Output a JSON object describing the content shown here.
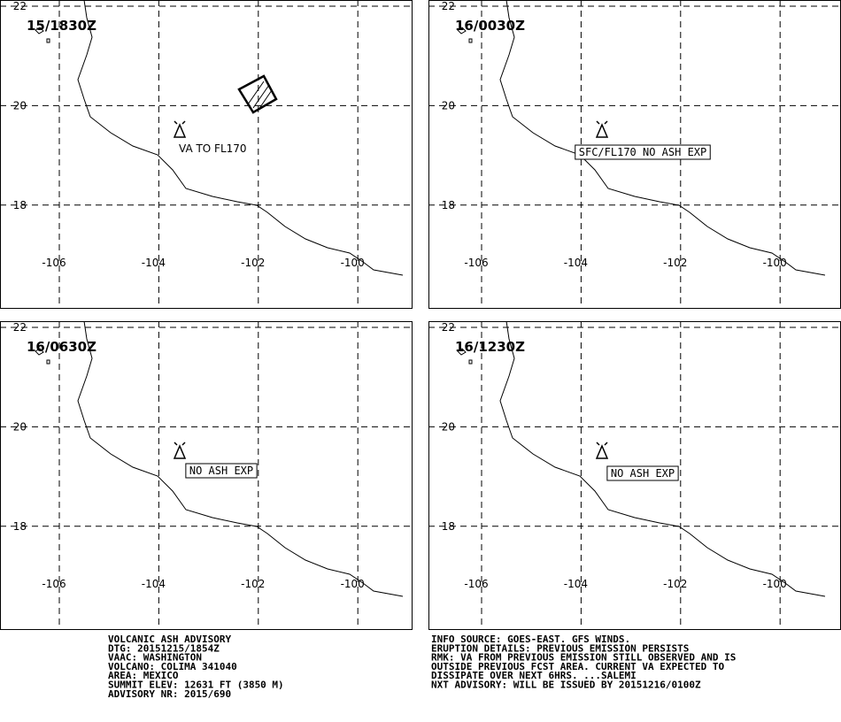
{
  "grid": {
    "lat_labels": [
      "22",
      "20",
      "18"
    ],
    "lon_labels": [
      "-106",
      "-104",
      "-102",
      "-100"
    ]
  },
  "panels": [
    {
      "time": "15/1830Z",
      "annotation": "VA TO FL170"
    },
    {
      "time": "16/0030Z",
      "annotation": "SFC/FL170 NO ASH EXP"
    },
    {
      "time": "16/0630Z",
      "annotation": "NO ASH EXP"
    },
    {
      "time": "16/1230Z",
      "annotation": "NO ASH EXP"
    }
  ],
  "footer": {
    "left": [
      "VOLCANIC ASH ADVISORY",
      "DTG: 20151215/1854Z",
      "VAAC: WASHINGTON",
      "VOLCANO: COLIMA 341040",
      "AREA: MEXICO",
      "SUMMIT ELEV: 12631 FT (3850 M)",
      "ADVISORY NR: 2015/690"
    ],
    "right": [
      "INFO SOURCE: GOES-EAST. GFS WINDS.",
      "ERUPTION DETAILS: PREVIOUS EMISSION PERSISTS",
      "RMK: VA FROM PREVIOUS EMISSION STILL OBSERVED AND IS",
      "OUTSIDE PREVIOUS FCST AREA. CURRENT VA EXPECTED TO",
      "DISSIPATE OVER NEXT 6HRS. ...SALEMI",
      "NXT ADVISORY: WILL BE ISSUED BY 20151216/0100Z"
    ]
  }
}
